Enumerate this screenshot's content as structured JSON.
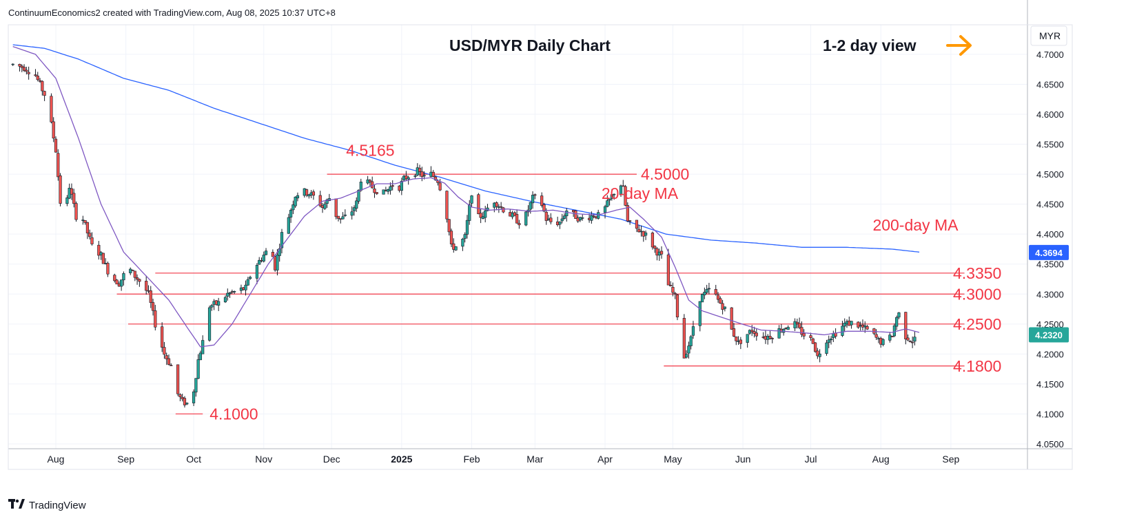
{
  "header": {
    "text": "ContinuumEconomics2 created with TradingView.com, Aug 08, 2025 10:37 UTC+8"
  },
  "footer": {
    "brand": "TradingView",
    "logo_icon": "tradingview-logo-icon"
  },
  "colors": {
    "up": "#26a69a",
    "down": "#ef5350",
    "ma20": "#7e57c2",
    "ma200": "#2962ff",
    "level": "#f23645",
    "arrow": "#ff9800",
    "grid": "#f0f3fa",
    "axis": "#131722"
  },
  "chart_data": {
    "type": "candlestick",
    "title": "USD/MYR Daily Chart",
    "view_label": "1-2 day view",
    "view_icon": "arrow-right-icon",
    "currency": "MYR",
    "y_range": [
      4.03,
      4.73
    ],
    "y_ticks": [
      "4.7000",
      "4.6500",
      "4.6000",
      "4.5500",
      "4.5000",
      "4.4500",
      "4.4000",
      "4.3500",
      "4.3000",
      "4.2500",
      "4.2000",
      "4.1500",
      "4.1000",
      "4.0500"
    ],
    "x_ticks": [
      {
        "label": "Aug",
        "day": 0
      },
      {
        "label": "Sep",
        "day": 31
      },
      {
        "label": "Oct",
        "day": 61
      },
      {
        "label": "Nov",
        "day": 92
      },
      {
        "label": "Dec",
        "day": 122
      },
      {
        "label": "2025",
        "day": 153,
        "bold": true
      },
      {
        "label": "Feb",
        "day": 184
      },
      {
        "label": "Mar",
        "day": 212
      },
      {
        "label": "Apr",
        "day": 243
      },
      {
        "label": "May",
        "day": 273
      },
      {
        "label": "Jun",
        "day": 304
      },
      {
        "label": "Jul",
        "day": 334
      },
      {
        "label": "Aug",
        "day": 365
      },
      {
        "label": "Sep",
        "day": 396
      }
    ],
    "last_price": "4.2320",
    "ma200_last": "4.3694",
    "levels": [
      {
        "value": 4.5,
        "label": "4.5000",
        "from_day": 120,
        "to_day": 257
      },
      {
        "value": 4.335,
        "label": "4.3350",
        "from_day": 44,
        "to_day": 402
      },
      {
        "value": 4.3,
        "label": "4.3000",
        "from_day": 27,
        "to_day": 402
      },
      {
        "value": 4.25,
        "label": "4.2500",
        "from_day": 32,
        "to_day": 402
      },
      {
        "value": 4.18,
        "label": "4.1800",
        "from_day": 269,
        "to_day": 402
      },
      {
        "value": 4.1,
        "label": "4.1000",
        "from_day": 53,
        "to_day": 65
      }
    ],
    "annotations": [
      {
        "text": "4.5165",
        "day": 140,
        "value": 4.5165
      },
      {
        "text": "20-day MA",
        "day": 253,
        "value": 4.445
      },
      {
        "text": "200-day MA",
        "day": 373,
        "value": 4.392
      }
    ],
    "anchors": [
      [
        -19,
        4.683
      ],
      [
        -14,
        4.678
      ],
      [
        -9,
        4.665
      ],
      [
        -4,
        4.625
      ],
      [
        0,
        4.54
      ],
      [
        3,
        4.41
      ],
      [
        6,
        4.48
      ],
      [
        9,
        4.43
      ],
      [
        12,
        4.425
      ],
      [
        16,
        4.38
      ],
      [
        20,
        4.365
      ],
      [
        24,
        4.33
      ],
      [
        28,
        4.318
      ],
      [
        32,
        4.345
      ],
      [
        35,
        4.33
      ],
      [
        38,
        4.318
      ],
      [
        41,
        4.3
      ],
      [
        44,
        4.25
      ],
      [
        48,
        4.2
      ],
      [
        51,
        4.18
      ],
      [
        53,
        4.14
      ],
      [
        56,
        4.12
      ],
      [
        60,
        4.115
      ],
      [
        63,
        4.19
      ],
      [
        65,
        4.22
      ],
      [
        68,
        4.28
      ],
      [
        72,
        4.285
      ],
      [
        76,
        4.3
      ],
      [
        80,
        4.305
      ],
      [
        84,
        4.31
      ],
      [
        87,
        4.34
      ],
      [
        91,
        4.36
      ],
      [
        95,
        4.38
      ],
      [
        97,
        4.345
      ],
      [
        100,
        4.4
      ],
      [
        103,
        4.43
      ],
      [
        106,
        4.465
      ],
      [
        109,
        4.472
      ],
      [
        112,
        4.468
      ],
      [
        115,
        4.46
      ],
      [
        118,
        4.445
      ],
      [
        121,
        4.46
      ],
      [
        123,
        4.435
      ],
      [
        126,
        4.425
      ],
      [
        130,
        4.432
      ],
      [
        133,
        4.452
      ],
      [
        135,
        4.492
      ],
      [
        138,
        4.485
      ],
      [
        141,
        4.475
      ],
      [
        145,
        4.468
      ],
      [
        149,
        4.482
      ],
      [
        151,
        4.472
      ],
      [
        154,
        4.492
      ],
      [
        157,
        4.5
      ],
      [
        160,
        4.505
      ],
      [
        163,
        4.495
      ],
      [
        166,
        4.5
      ],
      [
        169,
        4.49
      ],
      [
        172,
        4.455
      ],
      [
        175,
        4.378
      ],
      [
        178,
        4.38
      ],
      [
        181,
        4.395
      ],
      [
        184,
        4.47
      ],
      [
        187,
        4.428
      ],
      [
        190,
        4.435
      ],
      [
        193,
        4.46
      ],
      [
        196,
        4.448
      ],
      [
        199,
        4.438
      ],
      [
        202,
        4.43
      ],
      [
        205,
        4.42
      ],
      [
        208,
        4.432
      ],
      [
        211,
        4.46
      ],
      [
        214,
        4.462
      ],
      [
        217,
        4.425
      ],
      [
        220,
        4.418
      ],
      [
        223,
        4.42
      ],
      [
        226,
        4.44
      ],
      [
        229,
        4.432
      ],
      [
        232,
        4.425
      ],
      [
        235,
        4.428
      ],
      [
        238,
        4.432
      ],
      [
        241,
        4.43
      ],
      [
        244,
        4.45
      ],
      [
        247,
        4.47
      ],
      [
        249,
        4.49
      ],
      [
        251,
        4.475
      ],
      [
        253,
        4.42
      ],
      [
        256,
        4.41
      ],
      [
        259,
        4.405
      ],
      [
        262,
        4.395
      ],
      [
        265,
        4.375
      ],
      [
        268,
        4.362
      ],
      [
        271,
        4.315
      ],
      [
        274,
        4.295
      ],
      [
        276,
        4.235
      ],
      [
        278,
        4.195
      ],
      [
        281,
        4.225
      ],
      [
        284,
        4.29
      ],
      [
        287,
        4.3
      ],
      [
        290,
        4.31
      ],
      [
        293,
        4.29
      ],
      [
        296,
        4.275
      ],
      [
        299,
        4.24
      ],
      [
        302,
        4.218
      ],
      [
        305,
        4.23
      ],
      [
        308,
        4.24
      ],
      [
        311,
        4.232
      ],
      [
        314,
        4.228
      ],
      [
        317,
        4.232
      ],
      [
        320,
        4.24
      ],
      [
        323,
        4.245
      ],
      [
        326,
        4.255
      ],
      [
        329,
        4.24
      ],
      [
        332,
        4.228
      ],
      [
        335,
        4.222
      ],
      [
        337,
        4.195
      ],
      [
        340,
        4.222
      ],
      [
        343,
        4.23
      ],
      [
        346,
        4.238
      ],
      [
        349,
        4.25
      ],
      [
        352,
        4.252
      ],
      [
        355,
        4.248
      ],
      [
        358,
        4.242
      ],
      [
        361,
        4.235
      ],
      [
        364,
        4.222
      ],
      [
        367,
        4.218
      ],
      [
        370,
        4.232
      ],
      [
        372,
        4.262
      ],
      [
        374,
        4.272
      ],
      [
        376,
        4.23
      ],
      [
        379,
        4.222
      ],
      [
        382,
        4.232
      ]
    ],
    "ma20": [
      [
        -19,
        4.713
      ],
      [
        -9,
        4.7
      ],
      [
        0,
        4.66
      ],
      [
        10,
        4.56
      ],
      [
        20,
        4.45
      ],
      [
        30,
        4.37
      ],
      [
        40,
        4.33
      ],
      [
        50,
        4.29
      ],
      [
        58,
        4.245
      ],
      [
        64,
        4.212
      ],
      [
        70,
        4.215
      ],
      [
        78,
        4.25
      ],
      [
        86,
        4.3
      ],
      [
        94,
        4.35
      ],
      [
        102,
        4.39
      ],
      [
        110,
        4.43
      ],
      [
        118,
        4.455
      ],
      [
        126,
        4.46
      ],
      [
        134,
        4.472
      ],
      [
        142,
        4.484
      ],
      [
        150,
        4.484
      ],
      [
        158,
        4.492
      ],
      [
        166,
        4.494
      ],
      [
        172,
        4.485
      ],
      [
        178,
        4.462
      ],
      [
        184,
        4.445
      ],
      [
        192,
        4.44
      ],
      [
        200,
        4.442
      ],
      [
        210,
        4.438
      ],
      [
        220,
        4.44
      ],
      [
        230,
        4.434
      ],
      [
        240,
        4.432
      ],
      [
        248,
        4.44
      ],
      [
        254,
        4.445
      ],
      [
        260,
        4.425
      ],
      [
        268,
        4.395
      ],
      [
        274,
        4.345
      ],
      [
        280,
        4.29
      ],
      [
        286,
        4.272
      ],
      [
        294,
        4.262
      ],
      [
        302,
        4.252
      ],
      [
        312,
        4.24
      ],
      [
        322,
        4.238
      ],
      [
        332,
        4.235
      ],
      [
        340,
        4.232
      ],
      [
        350,
        4.238
      ],
      [
        360,
        4.238
      ],
      [
        370,
        4.236
      ],
      [
        376,
        4.242
      ],
      [
        382,
        4.236
      ]
    ],
    "ma200": [
      [
        -19,
        4.716
      ],
      [
        -5,
        4.71
      ],
      [
        10,
        4.692
      ],
      [
        30,
        4.66
      ],
      [
        50,
        4.64
      ],
      [
        70,
        4.61
      ],
      [
        90,
        4.585
      ],
      [
        110,
        4.56
      ],
      [
        130,
        4.54
      ],
      [
        150,
        4.515
      ],
      [
        170,
        4.495
      ],
      [
        190,
        4.472
      ],
      [
        210,
        4.455
      ],
      [
        230,
        4.44
      ],
      [
        250,
        4.425
      ],
      [
        270,
        4.4
      ],
      [
        290,
        4.39
      ],
      [
        310,
        4.385
      ],
      [
        330,
        4.378
      ],
      [
        350,
        4.378
      ],
      [
        370,
        4.375
      ],
      [
        382,
        4.37
      ]
    ]
  }
}
